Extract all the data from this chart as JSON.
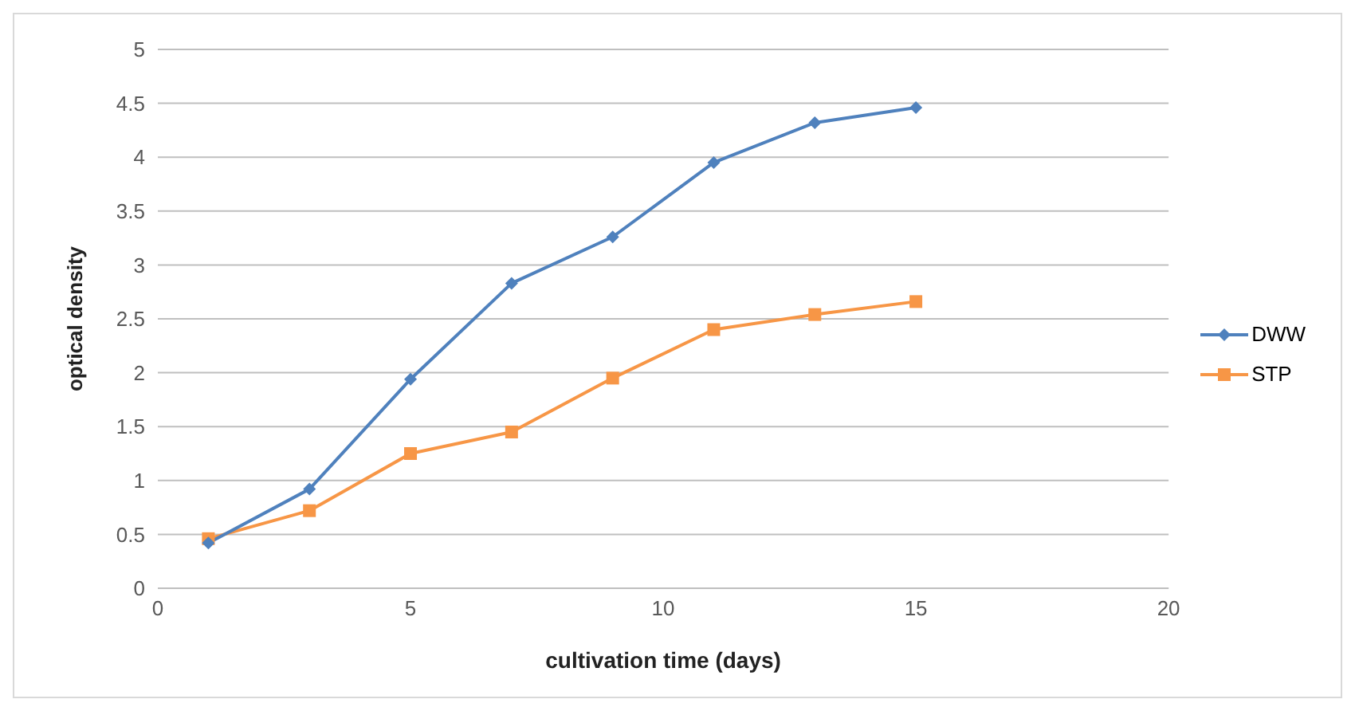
{
  "chart_data": {
    "type": "line",
    "xlabel": "cultivation time (days)",
    "ylabel": "optical density",
    "x": [
      1,
      3,
      5,
      7,
      9,
      11,
      13,
      15
    ],
    "series": [
      {
        "name": "DWW",
        "color": "#4f81bd",
        "marker": "diamond",
        "values": [
          0.42,
          0.92,
          1.94,
          2.83,
          3.26,
          3.95,
          4.32,
          4.46
        ]
      },
      {
        "name": "STP",
        "color": "#f79646",
        "marker": "square",
        "values": [
          0.46,
          0.72,
          1.25,
          1.45,
          1.95,
          2.4,
          2.54,
          2.66
        ]
      }
    ],
    "xlim": [
      0,
      20
    ],
    "xticks": [
      0,
      5,
      10,
      15,
      20
    ],
    "ylim": [
      0,
      5
    ],
    "yticks": [
      0,
      0.5,
      1,
      1.5,
      2,
      2.5,
      3,
      3.5,
      4,
      4.5,
      5
    ],
    "grid": "y",
    "legend": "right"
  }
}
